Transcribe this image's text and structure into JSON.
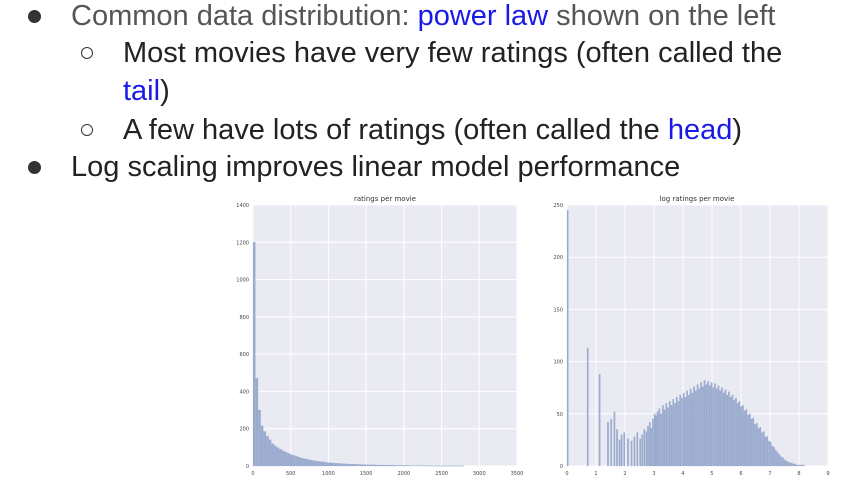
{
  "bullets": {
    "b1": {
      "prefix": "Common data distribution: ",
      "link": "power law",
      "suffix": " shown on the left"
    },
    "b1a": {
      "prefix": "Most movies have very few ratings (often called the",
      "link": "tail",
      "suffix": ")"
    },
    "b1b": {
      "prefix": "A few have lots of ratings (often called the ",
      "link": "head",
      "suffix": ")"
    },
    "b2": {
      "text": "Log scaling improves linear model performance"
    }
  },
  "colors": {
    "accent": "#1a1ae6",
    "bar": "#9bacd0",
    "plot_bg": "#eaeaf2",
    "grid": "#ffffff"
  },
  "chart_data": [
    {
      "type": "bar",
      "title": "ratings per movie",
      "xlabel": "",
      "ylabel": "",
      "xlim": [
        0,
        3500
      ],
      "ylim": [
        0,
        1400
      ],
      "xticks": [
        0,
        500,
        1000,
        1500,
        2000,
        2500,
        3000,
        3500
      ],
      "yticks": [
        0,
        200,
        400,
        600,
        800,
        1000,
        1200,
        1400
      ],
      "bin_width": 35,
      "values": [
        1200,
        470,
        300,
        215,
        185,
        160,
        140,
        120,
        108,
        98,
        90,
        82,
        75,
        68,
        62,
        57,
        52,
        47,
        43,
        40,
        36,
        33,
        30,
        28,
        26,
        24,
        22,
        20,
        18,
        17,
        16,
        15,
        14,
        13,
        12,
        11,
        10,
        10,
        9,
        9,
        8,
        8,
        7,
        7,
        6,
        6,
        6,
        5,
        5,
        5,
        4,
        4,
        4,
        4,
        3,
        3,
        3,
        3,
        3,
        2,
        2,
        2,
        2,
        2,
        2,
        2,
        2,
        1,
        1,
        1,
        1,
        1,
        1,
        1,
        1,
        1,
        1,
        1,
        1,
        1
      ],
      "grid": true
    },
    {
      "type": "bar",
      "title": "log ratings per movie",
      "xlabel": "",
      "ylabel": "",
      "xlim": [
        0,
        9
      ],
      "ylim": [
        0,
        250
      ],
      "xticks": [
        0,
        1,
        2,
        3,
        4,
        5,
        6,
        7,
        8,
        9
      ],
      "yticks": [
        0,
        50,
        100,
        150,
        200,
        250
      ],
      "bins": [
        {
          "x": 0.0,
          "y": 245
        },
        {
          "x": 0.69,
          "y": 113
        },
        {
          "x": 1.1,
          "y": 88
        },
        {
          "x": 1.39,
          "y": 42
        },
        {
          "x": 1.5,
          "y": 45
        },
        {
          "x": 1.61,
          "y": 52
        },
        {
          "x": 1.7,
          "y": 35
        },
        {
          "x": 1.79,
          "y": 25
        },
        {
          "x": 1.86,
          "y": 30
        },
        {
          "x": 1.95,
          "y": 32
        },
        {
          "x": 2.08,
          "y": 26
        },
        {
          "x": 2.2,
          "y": 24
        },
        {
          "x": 2.3,
          "y": 28
        },
        {
          "x": 2.4,
          "y": 32
        },
        {
          "x": 2.5,
          "y": 26
        },
        {
          "x": 2.57,
          "y": 30
        },
        {
          "x": 2.64,
          "y": 35
        },
        {
          "x": 2.71,
          "y": 33
        },
        {
          "x": 2.77,
          "y": 38
        },
        {
          "x": 2.83,
          "y": 42
        },
        {
          "x": 2.89,
          "y": 36
        },
        {
          "x": 2.94,
          "y": 45
        },
        {
          "x": 3.0,
          "y": 50
        },
        {
          "x": 3.05,
          "y": 48
        },
        {
          "x": 3.1,
          "y": 52
        },
        {
          "x": 3.16,
          "y": 55
        },
        {
          "x": 3.22,
          "y": 50
        },
        {
          "x": 3.28,
          "y": 58
        },
        {
          "x": 3.34,
          "y": 54
        },
        {
          "x": 3.4,
          "y": 60
        },
        {
          "x": 3.46,
          "y": 56
        },
        {
          "x": 3.52,
          "y": 62
        },
        {
          "x": 3.58,
          "y": 58
        },
        {
          "x": 3.64,
          "y": 64
        },
        {
          "x": 3.7,
          "y": 60
        },
        {
          "x": 3.76,
          "y": 66
        },
        {
          "x": 3.82,
          "y": 62
        },
        {
          "x": 3.88,
          "y": 68
        },
        {
          "x": 3.94,
          "y": 65
        },
        {
          "x": 4.0,
          "y": 70
        },
        {
          "x": 4.06,
          "y": 66
        },
        {
          "x": 4.12,
          "y": 72
        },
        {
          "x": 4.18,
          "y": 68
        },
        {
          "x": 4.24,
          "y": 74
        },
        {
          "x": 4.3,
          "y": 70
        },
        {
          "x": 4.36,
          "y": 76
        },
        {
          "x": 4.42,
          "y": 72
        },
        {
          "x": 4.48,
          "y": 78
        },
        {
          "x": 4.54,
          "y": 74
        },
        {
          "x": 4.6,
          "y": 80
        },
        {
          "x": 4.66,
          "y": 76
        },
        {
          "x": 4.72,
          "y": 82
        },
        {
          "x": 4.78,
          "y": 78
        },
        {
          "x": 4.84,
          "y": 81
        },
        {
          "x": 4.9,
          "y": 77
        },
        {
          "x": 4.96,
          "y": 80
        },
        {
          "x": 5.02,
          "y": 75
        },
        {
          "x": 5.08,
          "y": 79
        },
        {
          "x": 5.14,
          "y": 74
        },
        {
          "x": 5.2,
          "y": 77
        },
        {
          "x": 5.26,
          "y": 72
        },
        {
          "x": 5.32,
          "y": 75
        },
        {
          "x": 5.38,
          "y": 70
        },
        {
          "x": 5.44,
          "y": 73
        },
        {
          "x": 5.5,
          "y": 68
        },
        {
          "x": 5.56,
          "y": 71
        },
        {
          "x": 5.62,
          "y": 66
        },
        {
          "x": 5.68,
          "y": 68
        },
        {
          "x": 5.74,
          "y": 63
        },
        {
          "x": 5.8,
          "y": 65
        },
        {
          "x": 5.86,
          "y": 60
        },
        {
          "x": 5.92,
          "y": 62
        },
        {
          "x": 5.98,
          "y": 57
        },
        {
          "x": 6.04,
          "y": 58
        },
        {
          "x": 6.1,
          "y": 53
        },
        {
          "x": 6.16,
          "y": 54
        },
        {
          "x": 6.22,
          "y": 49
        },
        {
          "x": 6.28,
          "y": 50
        },
        {
          "x": 6.34,
          "y": 45
        },
        {
          "x": 6.4,
          "y": 46
        },
        {
          "x": 6.46,
          "y": 40
        },
        {
          "x": 6.52,
          "y": 41
        },
        {
          "x": 6.58,
          "y": 36
        },
        {
          "x": 6.64,
          "y": 37
        },
        {
          "x": 6.7,
          "y": 32
        },
        {
          "x": 6.76,
          "y": 33
        },
        {
          "x": 6.82,
          "y": 28
        },
        {
          "x": 6.88,
          "y": 28
        },
        {
          "x": 6.94,
          "y": 24
        },
        {
          "x": 7.0,
          "y": 23
        },
        {
          "x": 7.06,
          "y": 19
        },
        {
          "x": 7.12,
          "y": 18
        },
        {
          "x": 7.18,
          "y": 15
        },
        {
          "x": 7.24,
          "y": 13
        },
        {
          "x": 7.3,
          "y": 11
        },
        {
          "x": 7.36,
          "y": 9
        },
        {
          "x": 7.42,
          "y": 8
        },
        {
          "x": 7.48,
          "y": 6
        },
        {
          "x": 7.54,
          "y": 5
        },
        {
          "x": 7.6,
          "y": 4
        },
        {
          "x": 7.66,
          "y": 3
        },
        {
          "x": 7.72,
          "y": 3
        },
        {
          "x": 7.78,
          "y": 2
        },
        {
          "x": 7.84,
          "y": 2
        },
        {
          "x": 7.9,
          "y": 1
        },
        {
          "x": 7.96,
          "y": 1
        },
        {
          "x": 8.02,
          "y": 1
        },
        {
          "x": 8.08,
          "y": 1
        },
        {
          "x": 8.14,
          "y": 1
        }
      ],
      "grid": true
    }
  ]
}
